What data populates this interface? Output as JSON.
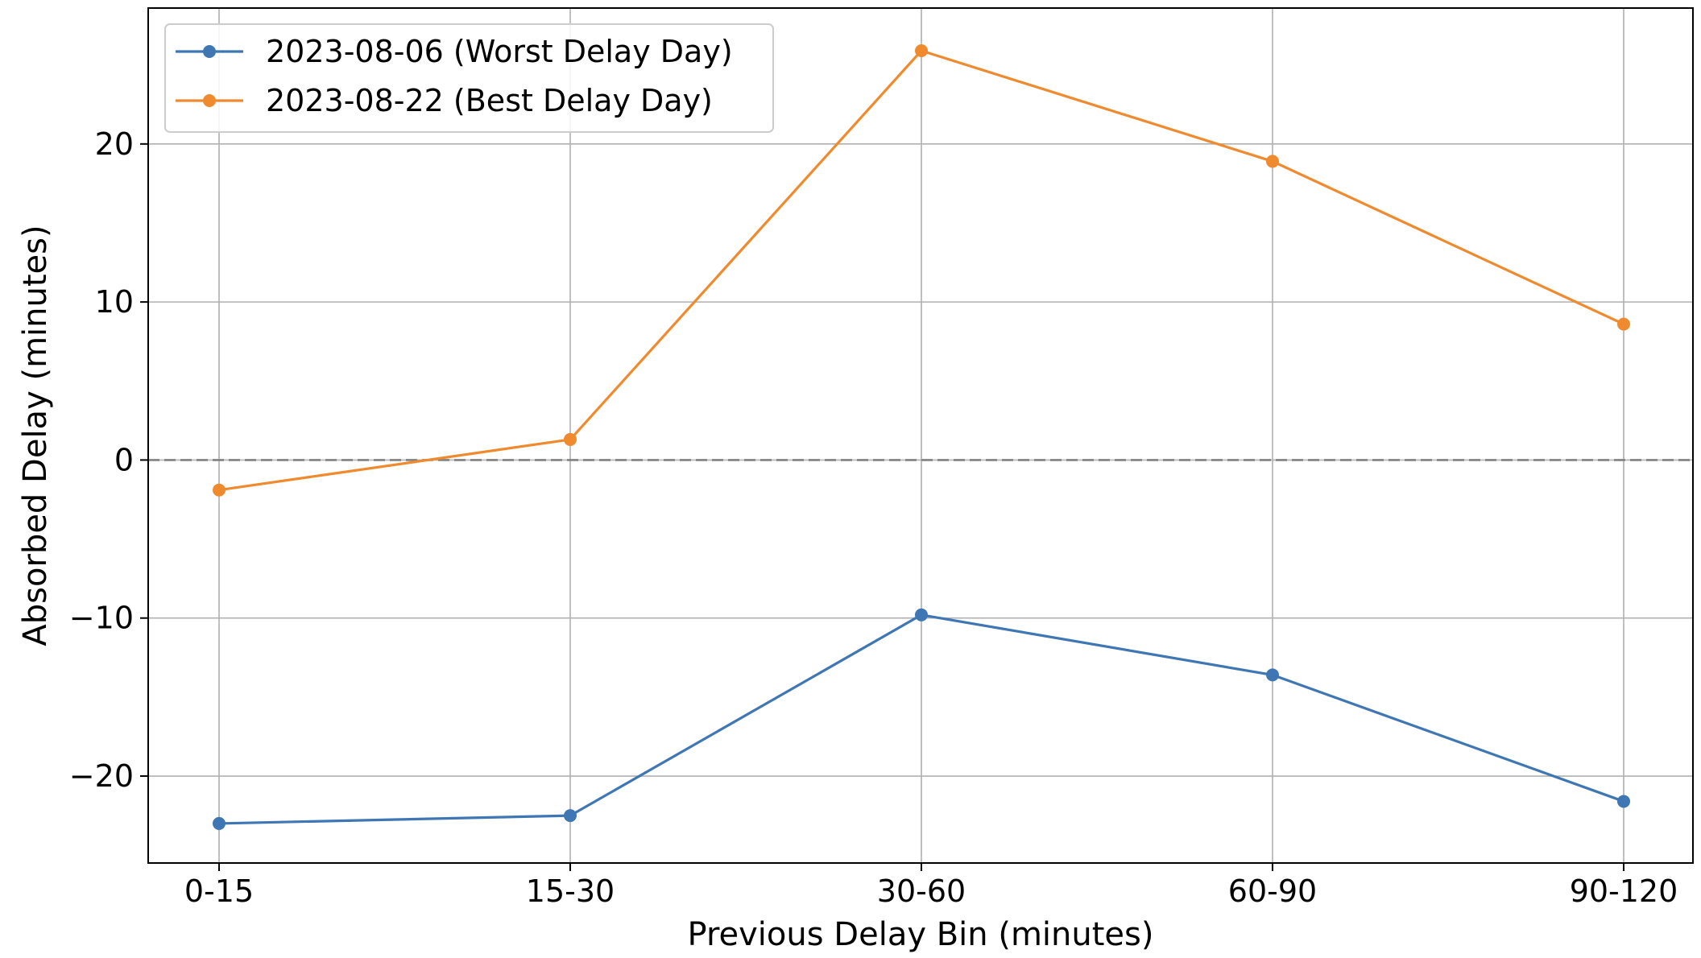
{
  "chart_data": {
    "type": "line",
    "title": "",
    "xlabel": "Previous Delay Bin (minutes)",
    "ylabel": "Absorbed Delay (minutes)",
    "categories": [
      "0-15",
      "15-30",
      "30-60",
      "60-90",
      "90-120"
    ],
    "ylim": [
      -25.5,
      28.6
    ],
    "yticks": [
      -20,
      -10,
      0,
      10,
      20
    ],
    "ytick_labels": [
      "−20",
      "−10",
      "0",
      "10",
      "20"
    ],
    "grid": true,
    "legend_position": "top-left",
    "reference_line": {
      "y": 0,
      "style": "dashed",
      "color": "#808080"
    },
    "series": [
      {
        "name": "2023-08-06 (Worst Delay Day)",
        "color": "#3f76b4",
        "marker": "circle",
        "values": [
          -23.0,
          -22.5,
          -9.8,
          -13.6,
          -21.6
        ]
      },
      {
        "name": "2023-08-22 (Best Delay Day)",
        "color": "#f08a2e",
        "marker": "circle",
        "values": [
          -1.9,
          1.3,
          25.9,
          18.9,
          8.6
        ]
      }
    ]
  }
}
